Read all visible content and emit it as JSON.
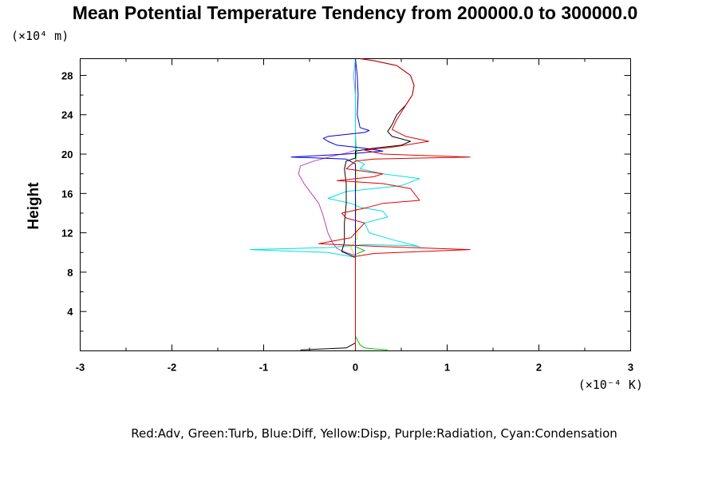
{
  "chart_data": {
    "type": "line",
    "title": "Mean Potential Temperature Tendency from 200000.0 to 300000.0",
    "ylabel": "Height",
    "y_unit": "(×10⁴ m)",
    "x_unit": "(×10⁻⁴ K)",
    "legend_text": "Red:Adv, Green:Turb, Blue:Diff, Yellow:Disp, Purple:Radiation, Cyan:Condensation",
    "xlim": [
      -3,
      3
    ],
    "ylim": [
      0,
      29.7
    ],
    "x_ticks": [
      -3,
      -2,
      -1,
      0,
      1,
      2,
      3
    ],
    "x_tick_labels": [
      "-3",
      "-2",
      "-1",
      "0",
      "1",
      "2",
      "3"
    ],
    "y_ticks": [
      4,
      8,
      12,
      16,
      20,
      24,
      28
    ],
    "y_tick_labels": [
      "4",
      "8",
      "12",
      "16",
      "20",
      "24",
      "28"
    ],
    "series": [
      {
        "name": "Turb",
        "color": "#00c000",
        "points": [
          [
            0.35,
            0.1
          ],
          [
            0.2,
            0.2
          ],
          [
            0.1,
            0.3
          ],
          [
            0.05,
            0.6
          ],
          [
            0,
            1.5
          ],
          [
            0,
            8
          ],
          [
            0,
            9.8
          ],
          [
            0.1,
            10.2
          ],
          [
            0,
            10.6
          ],
          [
            0,
            12
          ],
          [
            0,
            16
          ],
          [
            0,
            19
          ],
          [
            0.01,
            20
          ],
          [
            0,
            22
          ],
          [
            0,
            26
          ],
          [
            0,
            29.7
          ]
        ]
      },
      {
        "name": "Disp",
        "color": "#e0e000",
        "points": [
          [
            0,
            0.1
          ],
          [
            0,
            8
          ],
          [
            0,
            9.5
          ],
          [
            -0.05,
            10.5
          ],
          [
            0.02,
            11.5
          ],
          [
            0,
            13
          ],
          [
            0.01,
            14.5
          ],
          [
            0,
            16
          ],
          [
            0.02,
            17.5
          ],
          [
            0,
            19
          ],
          [
            0,
            22
          ],
          [
            0,
            26
          ],
          [
            0,
            29.7
          ]
        ]
      },
      {
        "name": "Radiation",
        "color": "#c040c0",
        "points": [
          [
            0,
            0.2
          ],
          [
            0,
            8
          ],
          [
            0,
            9.7
          ],
          [
            -0.1,
            10
          ],
          [
            -0.2,
            10.4
          ],
          [
            -0.25,
            11
          ],
          [
            -0.3,
            12
          ],
          [
            -0.33,
            13
          ],
          [
            -0.36,
            14
          ],
          [
            -0.4,
            15
          ],
          [
            -0.48,
            16
          ],
          [
            -0.56,
            17
          ],
          [
            -0.62,
            18
          ],
          [
            -0.6,
            18.8
          ],
          [
            -0.45,
            19.3
          ],
          [
            -0.25,
            19.8
          ],
          [
            -0.1,
            20.1
          ],
          [
            0,
            20.4
          ],
          [
            0,
            21
          ],
          [
            0,
            29.7
          ]
        ]
      },
      {
        "name": "Cyan (Condensation)",
        "color": "#00e0e0",
        "points": [
          [
            0,
            0.1
          ],
          [
            0,
            9.5
          ],
          [
            -0.3,
            10
          ],
          [
            -1.15,
            10.3
          ],
          [
            -0.3,
            10.5
          ],
          [
            0.1,
            10.8
          ],
          [
            0.6,
            10.7
          ],
          [
            0.7,
            10.6
          ],
          [
            0.4,
            11.3
          ],
          [
            0.15,
            12
          ],
          [
            0.1,
            13
          ],
          [
            0.35,
            13.6
          ],
          [
            0.3,
            14.2
          ],
          [
            0.05,
            14.6
          ],
          [
            -0.05,
            15
          ],
          [
            -0.3,
            15.5
          ],
          [
            -0.1,
            16.2
          ],
          [
            0.5,
            16.8
          ],
          [
            0.7,
            17.5
          ],
          [
            0.3,
            18
          ],
          [
            0.05,
            18.5
          ],
          [
            0.1,
            19
          ],
          [
            0,
            19.4
          ],
          [
            0,
            20
          ],
          [
            0,
            22
          ],
          [
            0,
            26
          ],
          [
            -0.02,
            28
          ],
          [
            0,
            29.7
          ]
        ]
      },
      {
        "name": "Diff",
        "color": "#0000e0",
        "points": [
          [
            0,
            0.1
          ],
          [
            0,
            9
          ],
          [
            0,
            19
          ],
          [
            -0.1,
            19.5
          ],
          [
            -0.7,
            19.7
          ],
          [
            -0.1,
            20
          ],
          [
            0.3,
            20.3
          ],
          [
            0.1,
            20.6
          ],
          [
            -0.2,
            20.9
          ],
          [
            -0.3,
            21.3
          ],
          [
            -0.35,
            21.6
          ],
          [
            -0.3,
            21.8
          ],
          [
            0.1,
            22.2
          ],
          [
            0.15,
            22.4
          ],
          [
            0.05,
            22.7
          ],
          [
            0.02,
            24
          ],
          [
            0.03,
            26
          ],
          [
            0.02,
            28
          ],
          [
            0,
            29.7
          ]
        ]
      },
      {
        "name": "Black (total)",
        "color": "#000000",
        "points": [
          [
            -0.6,
            0.1
          ],
          [
            -0.1,
            0.3
          ],
          [
            0,
            0.8
          ],
          [
            0,
            9.5
          ],
          [
            -0.15,
            10.1
          ],
          [
            -0.12,
            11
          ],
          [
            -0.12,
            13
          ],
          [
            -0.1,
            15
          ],
          [
            -0.1,
            17
          ],
          [
            -0.12,
            18.5
          ],
          [
            -0.1,
            19.3
          ],
          [
            0,
            19.6
          ],
          [
            0,
            20.3
          ],
          [
            0.2,
            20.6
          ],
          [
            0.5,
            20.9
          ],
          [
            0.6,
            21.3
          ],
          [
            0.4,
            21.8
          ],
          [
            0.35,
            22.3
          ],
          [
            0.4,
            23
          ],
          [
            0.45,
            24
          ],
          [
            0.55,
            25
          ],
          [
            0.62,
            26
          ],
          [
            0.64,
            27
          ],
          [
            0.6,
            28
          ],
          [
            0.45,
            29
          ],
          [
            0.2,
            29.5
          ],
          [
            0.05,
            29.7
          ]
        ]
      },
      {
        "name": "Adv",
        "color": "#e00000",
        "points": [
          [
            0,
            0.1
          ],
          [
            0,
            8
          ],
          [
            0,
            9.6
          ],
          [
            0.2,
            9.9
          ],
          [
            1.25,
            10.3
          ],
          [
            0.3,
            10.6
          ],
          [
            -0.2,
            10.8
          ],
          [
            -0.4,
            10.9
          ],
          [
            -0.05,
            11.5
          ],
          [
            0,
            12
          ],
          [
            0.1,
            13
          ],
          [
            -0.1,
            13.5
          ],
          [
            -0.15,
            14
          ],
          [
            0.1,
            14.5
          ],
          [
            0.3,
            15
          ],
          [
            0.7,
            15.3
          ],
          [
            0.6,
            16.5
          ],
          [
            0.3,
            17
          ],
          [
            -0.2,
            17.3
          ],
          [
            0.2,
            17.7
          ],
          [
            0.3,
            18
          ],
          [
            -0.1,
            18.5
          ],
          [
            0,
            19.3
          ],
          [
            0.2,
            19.5
          ],
          [
            1.25,
            19.7
          ],
          [
            0.3,
            20
          ],
          [
            0.1,
            20.4
          ],
          [
            0.4,
            20.7
          ],
          [
            0.8,
            21.3
          ],
          [
            0.55,
            21.8
          ],
          [
            0.4,
            22.5
          ],
          [
            0.45,
            23.5
          ],
          [
            0.55,
            25
          ],
          [
            0.62,
            26
          ],
          [
            0.64,
            27
          ],
          [
            0.6,
            28
          ],
          [
            0.45,
            29
          ],
          [
            0.2,
            29.5
          ],
          [
            0.05,
            29.7
          ]
        ]
      }
    ]
  }
}
